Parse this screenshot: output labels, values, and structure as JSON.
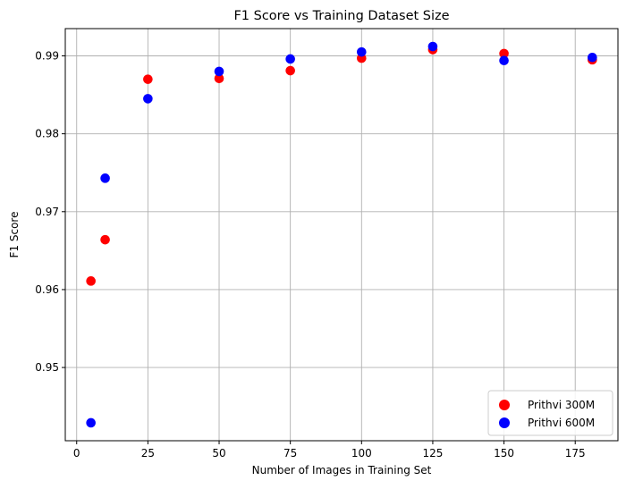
{
  "chart_data": {
    "type": "scatter",
    "title": "F1 Score vs Training Dataset Size",
    "xlabel": "Number of Images in Training Set",
    "ylabel": "F1 Score",
    "xlim": [
      -4,
      190
    ],
    "ylim": [
      0.9406,
      0.9935
    ],
    "xticks": [
      0,
      25,
      50,
      75,
      100,
      125,
      150,
      175
    ],
    "xtick_labels": [
      "0",
      "25",
      "50",
      "75",
      "100",
      "125",
      "150",
      "175"
    ],
    "yticks": [
      0.95,
      0.96,
      0.97,
      0.98,
      0.99
    ],
    "ytick_labels": [
      "0.95",
      "0.96",
      "0.97",
      "0.98",
      "0.99"
    ],
    "grid": true,
    "legend_position": "bottom-right",
    "series": [
      {
        "name": "Prithvi 300M",
        "color": "#ff0000",
        "x": [
          5,
          10,
          25,
          50,
          75,
          100,
          125,
          150,
          181
        ],
        "y": [
          0.9611,
          0.9664,
          0.987,
          0.9871,
          0.9881,
          0.9897,
          0.9908,
          0.9903,
          0.9895
        ]
      },
      {
        "name": "Prithvi 600M",
        "color": "#0000ff",
        "x": [
          5,
          10,
          25,
          50,
          75,
          100,
          125,
          150,
          181
        ],
        "y": [
          0.9429,
          0.9743,
          0.9845,
          0.988,
          0.9896,
          0.9905,
          0.9912,
          0.9894,
          0.9898
        ]
      }
    ]
  }
}
